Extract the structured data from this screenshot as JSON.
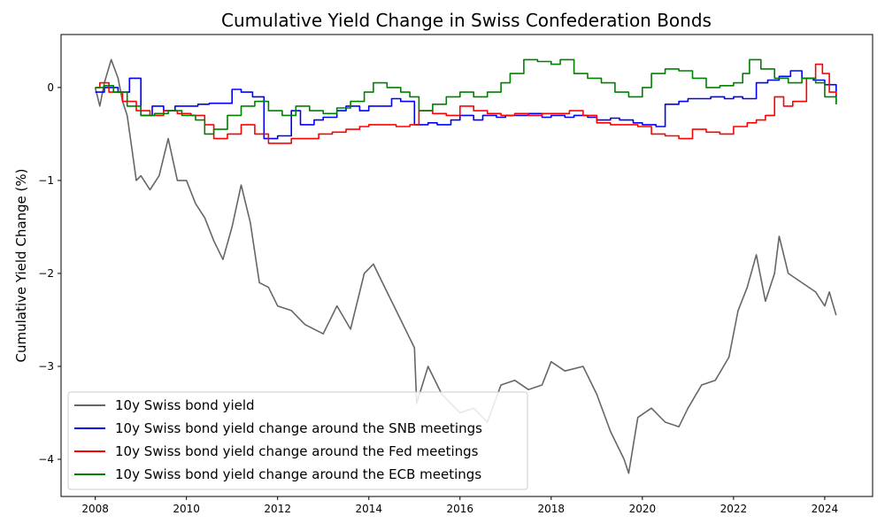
{
  "chart_data": {
    "type": "line",
    "title": "Cumulative Yield Change in Swiss Confederation Bonds",
    "xlabel": "",
    "ylabel": "Cumulative Yield Change (%)",
    "xlim": [
      2007.25,
      2025.05
    ],
    "ylim": [
      -4.4,
      0.57
    ],
    "xticks": [
      2008,
      2010,
      2012,
      2014,
      2016,
      2018,
      2020,
      2022,
      2024
    ],
    "yticks": [
      0,
      -1,
      -2,
      -3,
      -4
    ],
    "ytick_labels": [
      "0",
      "−1",
      "−2",
      "−3",
      "−4"
    ],
    "grid": false,
    "legend_position": "lower-left",
    "series": [
      {
        "name": "10y Swiss bond yield",
        "color": "#666666",
        "step": false,
        "x": [
          2008.0,
          2008.1,
          2008.2,
          2008.35,
          2008.5,
          2008.6,
          2008.7,
          2008.8,
          2008.9,
          2009.0,
          2009.2,
          2009.4,
          2009.6,
          2009.8,
          2010.0,
          2010.2,
          2010.4,
          2010.6,
          2010.8,
          2011.0,
          2011.2,
          2011.4,
          2011.6,
          2011.8,
          2012.0,
          2012.3,
          2012.6,
          2013.0,
          2013.3,
          2013.6,
          2013.9,
          2014.1,
          2014.4,
          2014.7,
          2015.0,
          2015.05,
          2015.3,
          2015.6,
          2016.0,
          2016.3,
          2016.6,
          2016.9,
          2017.2,
          2017.5,
          2017.8,
          2018.0,
          2018.3,
          2018.7,
          2019.0,
          2019.3,
          2019.6,
          2019.7,
          2019.9,
          2020.2,
          2020.5,
          2020.8,
          2021.0,
          2021.3,
          2021.6,
          2021.9,
          2022.1,
          2022.3,
          2022.5,
          2022.7,
          2022.9,
          2023.0,
          2023.2,
          2023.5,
          2023.8,
          2024.0,
          2024.1,
          2024.25
        ],
        "y": [
          0.0,
          -0.2,
          0.05,
          0.3,
          0.1,
          -0.15,
          -0.3,
          -0.65,
          -1.0,
          -0.95,
          -1.1,
          -0.95,
          -0.55,
          -1.0,
          -1.0,
          -1.25,
          -1.4,
          -1.65,
          -1.85,
          -1.5,
          -1.05,
          -1.45,
          -2.1,
          -2.15,
          -2.35,
          -2.4,
          -2.55,
          -2.65,
          -2.35,
          -2.6,
          -2.0,
          -1.9,
          -2.2,
          -2.5,
          -2.8,
          -3.4,
          -3.0,
          -3.3,
          -3.5,
          -3.45,
          -3.6,
          -3.2,
          -3.15,
          -3.25,
          -3.2,
          -2.95,
          -3.05,
          -3.0,
          -3.3,
          -3.7,
          -4.0,
          -4.15,
          -3.55,
          -3.45,
          -3.6,
          -3.65,
          -3.45,
          -3.2,
          -3.15,
          -2.9,
          -2.4,
          -2.15,
          -1.8,
          -2.3,
          -2.0,
          -1.6,
          -2.0,
          -2.1,
          -2.2,
          -2.35,
          -2.2,
          -2.45
        ]
      },
      {
        "name": "10y Swiss bond yield change around the SNB meetings",
        "color": "#0000ff",
        "step": true,
        "x": [
          2008.0,
          2008.2,
          2008.5,
          2008.75,
          2009.0,
          2009.25,
          2009.5,
          2009.75,
          2010.0,
          2010.25,
          2010.5,
          2010.75,
          2011.0,
          2011.2,
          2011.45,
          2011.7,
          2012.0,
          2012.3,
          2012.5,
          2012.8,
          2013.0,
          2013.3,
          2013.5,
          2013.8,
          2014.0,
          2014.5,
          2014.7,
          2015.0,
          2015.3,
          2015.5,
          2015.8,
          2016.0,
          2016.3,
          2016.5,
          2016.8,
          2017.0,
          2017.3,
          2017.5,
          2017.8,
          2018.0,
          2018.3,
          2018.5,
          2018.8,
          2019.0,
          2019.3,
          2019.5,
          2019.8,
          2020.0,
          2020.3,
          2020.5,
          2020.8,
          2021.0,
          2021.3,
          2021.5,
          2021.8,
          2022.0,
          2022.2,
          2022.5,
          2022.75,
          2023.0,
          2023.25,
          2023.5,
          2023.75,
          2024.0,
          2024.25
        ],
        "y": [
          -0.05,
          0.0,
          -0.05,
          0.1,
          -0.3,
          -0.2,
          -0.25,
          -0.2,
          -0.2,
          -0.18,
          -0.17,
          -0.17,
          -0.02,
          -0.05,
          -0.1,
          -0.55,
          -0.52,
          -0.25,
          -0.4,
          -0.35,
          -0.32,
          -0.25,
          -0.2,
          -0.25,
          -0.2,
          -0.12,
          -0.15,
          -0.4,
          -0.38,
          -0.4,
          -0.35,
          -0.3,
          -0.35,
          -0.3,
          -0.32,
          -0.3,
          -0.3,
          -0.28,
          -0.32,
          -0.3,
          -0.32,
          -0.3,
          -0.32,
          -0.35,
          -0.33,
          -0.35,
          -0.38,
          -0.4,
          -0.42,
          -0.18,
          -0.15,
          -0.12,
          -0.12,
          -0.1,
          -0.12,
          -0.1,
          -0.12,
          0.05,
          0.08,
          0.12,
          0.18,
          0.1,
          0.08,
          0.03,
          -0.18
        ]
      },
      {
        "name": "10y Swiss bond yield change around the Fed meetings",
        "color": "#ff0000",
        "step": true,
        "x": [
          2008.0,
          2008.1,
          2008.3,
          2008.6,
          2008.9,
          2009.2,
          2009.5,
          2009.8,
          2010.1,
          2010.4,
          2010.6,
          2010.9,
          2011.2,
          2011.5,
          2011.8,
          2012.0,
          2012.3,
          2012.6,
          2012.9,
          2013.2,
          2013.5,
          2013.8,
          2014.0,
          2014.3,
          2014.6,
          2014.9,
          2015.1,
          2015.4,
          2015.7,
          2016.0,
          2016.3,
          2016.6,
          2016.9,
          2017.2,
          2017.5,
          2017.8,
          2018.1,
          2018.4,
          2018.7,
          2019.0,
          2019.3,
          2019.6,
          2019.9,
          2020.2,
          2020.5,
          2020.8,
          2021.1,
          2021.4,
          2021.7,
          2022.0,
          2022.3,
          2022.5,
          2022.7,
          2022.9,
          2023.1,
          2023.3,
          2023.6,
          2023.8,
          2023.95,
          2024.1,
          2024.25
        ],
        "y": [
          0.0,
          0.05,
          -0.05,
          -0.15,
          -0.25,
          -0.3,
          -0.25,
          -0.28,
          -0.3,
          -0.4,
          -0.55,
          -0.5,
          -0.4,
          -0.5,
          -0.6,
          -0.6,
          -0.55,
          -0.55,
          -0.5,
          -0.48,
          -0.45,
          -0.42,
          -0.4,
          -0.4,
          -0.42,
          -0.4,
          -0.25,
          -0.28,
          -0.3,
          -0.2,
          -0.25,
          -0.28,
          -0.3,
          -0.28,
          -0.3,
          -0.28,
          -0.28,
          -0.25,
          -0.3,
          -0.38,
          -0.4,
          -0.4,
          -0.42,
          -0.5,
          -0.52,
          -0.55,
          -0.45,
          -0.48,
          -0.5,
          -0.42,
          -0.38,
          -0.35,
          -0.3,
          -0.1,
          -0.2,
          -0.15,
          0.1,
          0.25,
          0.15,
          -0.05,
          -0.08
        ]
      },
      {
        "name": "10y Swiss bond yield change around the ECB meetings",
        "color": "#008000",
        "step": true,
        "x": [
          2008.0,
          2008.2,
          2008.4,
          2008.7,
          2009.0,
          2009.3,
          2009.6,
          2009.9,
          2010.2,
          2010.4,
          2010.6,
          2010.9,
          2011.2,
          2011.5,
          2011.8,
          2012.1,
          2012.4,
          2012.7,
          2013.0,
          2013.3,
          2013.6,
          2013.9,
          2014.1,
          2014.4,
          2014.7,
          2014.9,
          2015.1,
          2015.4,
          2015.7,
          2016.0,
          2016.3,
          2016.6,
          2016.9,
          2017.1,
          2017.4,
          2017.7,
          2018.0,
          2018.2,
          2018.5,
          2018.8,
          2019.1,
          2019.4,
          2019.7,
          2020.0,
          2020.2,
          2020.5,
          2020.8,
          2021.1,
          2021.4,
          2021.7,
          2022.0,
          2022.2,
          2022.35,
          2022.6,
          2022.9,
          2023.2,
          2023.5,
          2023.8,
          2024.0,
          2024.25
        ],
        "y": [
          0.0,
          0.02,
          -0.05,
          -0.2,
          -0.3,
          -0.28,
          -0.25,
          -0.3,
          -0.35,
          -0.5,
          -0.45,
          -0.3,
          -0.2,
          -0.15,
          -0.25,
          -0.3,
          -0.2,
          -0.25,
          -0.28,
          -0.22,
          -0.15,
          -0.05,
          0.05,
          0.0,
          -0.05,
          -0.1,
          -0.25,
          -0.18,
          -0.1,
          -0.05,
          -0.1,
          -0.05,
          0.05,
          0.15,
          0.3,
          0.28,
          0.25,
          0.3,
          0.15,
          0.1,
          0.05,
          -0.05,
          -0.1,
          0.0,
          0.15,
          0.2,
          0.18,
          0.1,
          0.0,
          0.02,
          0.05,
          0.15,
          0.3,
          0.2,
          0.1,
          0.05,
          0.1,
          0.05,
          -0.1,
          -0.18
        ]
      }
    ]
  }
}
